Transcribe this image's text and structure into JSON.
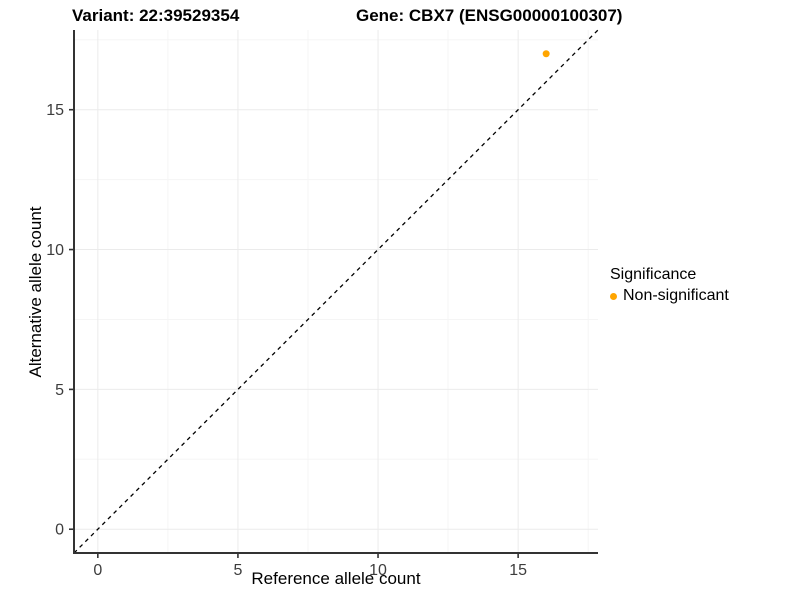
{
  "header": {
    "variant_title": "Variant: 22:39529354",
    "gene_title": "Gene: CBX7 (ENSG00000100307)"
  },
  "chart_data": {
    "type": "scatter",
    "xlabel": "Reference allele count",
    "ylabel": "Alternative allele count",
    "xlim": [
      -0.85,
      17.85
    ],
    "ylim": [
      -0.85,
      17.85
    ],
    "x_major_ticks": [
      0,
      5,
      10,
      15
    ],
    "y_major_ticks": [
      0,
      5,
      10,
      15
    ],
    "x_minor_ticks": [
      2.5,
      7.5,
      12.5,
      17.5
    ],
    "y_minor_ticks": [
      2.5,
      7.5,
      12.5,
      17.5
    ],
    "grid": "major and minor, light gray on white",
    "series": [
      {
        "name": "Non-significant",
        "color": "#FFA500",
        "points": [
          {
            "x": 16,
            "y": 17
          }
        ]
      }
    ],
    "reference_line": {
      "kind": "identity y=x",
      "style": "dashed",
      "color": "#000000"
    },
    "legend_position": "right"
  },
  "legend": {
    "title": "Significance",
    "items": [
      {
        "label": "Non-significant",
        "color": "#FFA500"
      }
    ]
  },
  "colors": {
    "background": "#FFFFFF",
    "axis_line": "#333333",
    "tick_mark": "#333333",
    "tick_label": "#3d3d3d",
    "grid_major": "#EBEBEB",
    "grid_minor": "#F5F5F5",
    "point": "#FFA500"
  }
}
